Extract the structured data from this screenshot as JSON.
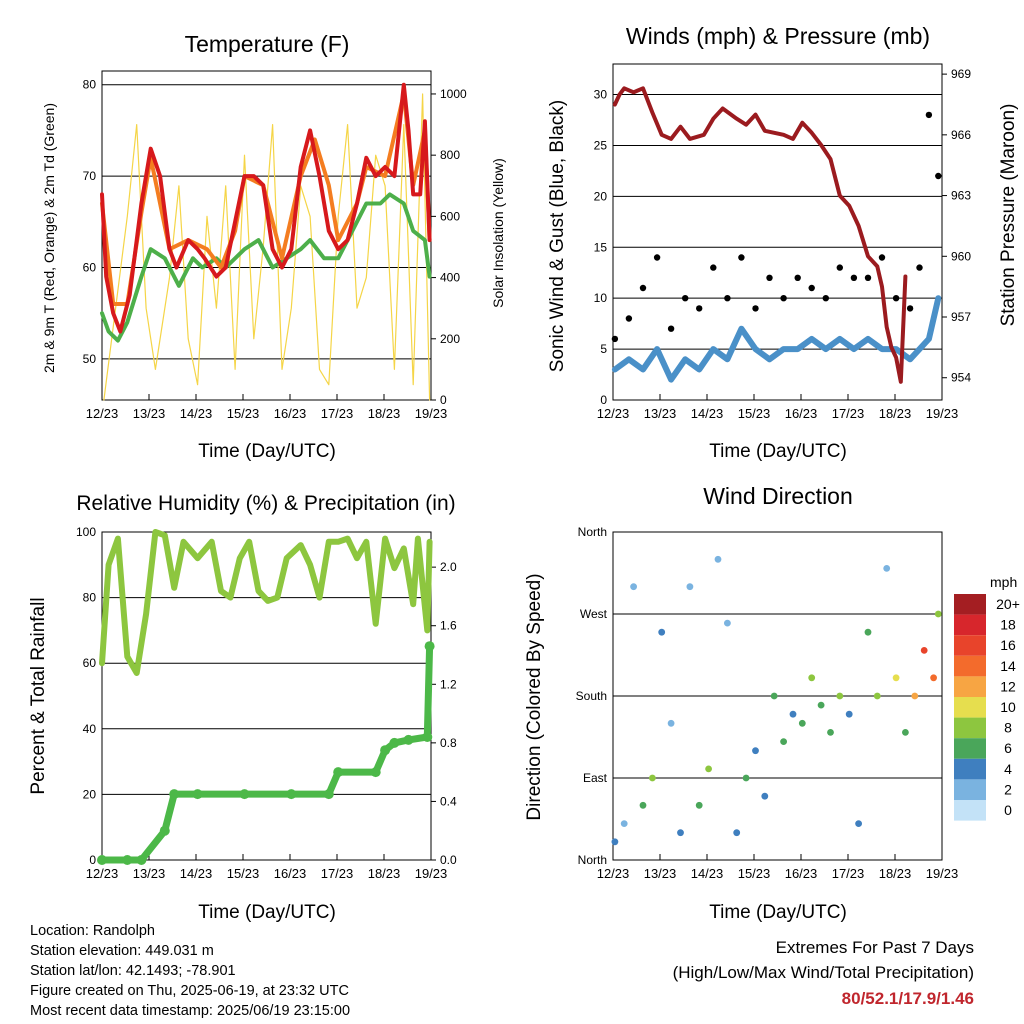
{
  "charts": {
    "temperature": {
      "title": "Temperature (F)",
      "ylabel_left": "2m & 9m T (Red, Orange) & 2m Td (Green)",
      "ylabel_right": "Solar Insolation (Yellow)",
      "xlabel": "Time (Day/UTC)"
    },
    "winds": {
      "title": "Winds (mph) & Pressure (mb)",
      "ylabel_left": "Sonic Wind & Gust (Blue, Black)",
      "ylabel_right": "Station Pressure (Maroon)",
      "xlabel": "Time (Day/UTC)"
    },
    "humidity": {
      "title": "Relative Humidity (%) & Precipitation (in)",
      "ylabel_left": "Percent & Total Rainfall",
      "xlabel": "Time (Day/UTC)"
    },
    "direction": {
      "title": "Wind Direction",
      "ylabel_left": "Direction (Colored By Speed)",
      "xlabel": "Time (Day/UTC)",
      "legend_title": "mph"
    }
  },
  "chart_data": [
    {
      "type": "line",
      "title": "Temperature (F)",
      "xlabel": "Time (Day/UTC)",
      "ylabel": "2m & 9m T (Red, Orange) & 2m Td (Green)",
      "y2label": "Solar Insolation (Yellow)",
      "x_ticks": [
        "12/23",
        "13/23",
        "14/23",
        "15/23",
        "16/23",
        "17/23",
        "18/23",
        "19/23"
      ],
      "xlim": [
        12.96,
        19.98
      ],
      "y_ticks": [
        50,
        60,
        70,
        80
      ],
      "ylim": [
        45.5,
        81.5
      ],
      "y2_ticks": [
        0,
        200,
        400,
        600,
        800,
        1000
      ],
      "y2lim": [
        0,
        1075
      ],
      "grid": true,
      "series": [
        {
          "color": "#d7191c",
          "x": [
            12.96,
            13.05,
            13.2,
            13.35,
            13.55,
            13.8,
            14.0,
            14.2,
            14.4,
            14.55,
            14.8,
            15.0,
            15.15,
            15.4,
            15.6,
            15.8,
            16.0,
            16.2,
            16.4,
            16.6,
            16.8,
            17.0,
            17.2,
            17.4,
            17.6,
            17.8,
            18.0,
            18.2,
            18.4,
            18.6,
            18.8,
            19.0,
            19.2,
            19.4,
            19.5,
            19.6,
            19.75,
            19.85,
            19.95
          ],
          "values": [
            68,
            59,
            55,
            53,
            57,
            67,
            73,
            70,
            62,
            60,
            63,
            62,
            61,
            59,
            60,
            65,
            70,
            70,
            69,
            62,
            60,
            62,
            71,
            75,
            70,
            64,
            62,
            63,
            67,
            72,
            70,
            71,
            70,
            80,
            75,
            68,
            68,
            76,
            63
          ]
        },
        {
          "color": "#f47d20",
          "x": [
            12.96,
            13.2,
            13.5,
            13.8,
            14.0,
            14.4,
            14.8,
            15.2,
            15.5,
            15.8,
            16.0,
            16.4,
            16.8,
            17.2,
            17.5,
            17.8,
            18.0,
            18.4,
            18.6,
            19.0,
            19.4,
            19.6,
            19.85,
            19.95
          ],
          "values": [
            67,
            56,
            56,
            66,
            72,
            62,
            63,
            62,
            60,
            64,
            70,
            69,
            61,
            70,
            74,
            69,
            63,
            67,
            71,
            70,
            79,
            69,
            75,
            63
          ]
        },
        {
          "color": "#4daf4a",
          "x": [
            12.96,
            13.1,
            13.3,
            13.5,
            13.8,
            14.0,
            14.3,
            14.6,
            14.9,
            15.1,
            15.4,
            15.6,
            16.0,
            16.3,
            16.6,
            16.9,
            17.2,
            17.4,
            17.7,
            18.0,
            18.3,
            18.6,
            18.9,
            19.1,
            19.4,
            19.6,
            19.85,
            19.95
          ],
          "values": [
            55,
            53,
            52,
            54,
            59,
            62,
            61,
            58,
            61,
            60,
            61,
            60,
            62,
            63,
            60,
            61,
            62,
            63,
            61,
            61,
            64,
            67,
            67,
            68,
            67,
            64,
            63,
            59
          ]
        },
        {
          "color": "#f5d547",
          "x": [
            13.0,
            13.5,
            13.7,
            13.9,
            14.1,
            14.4,
            14.6,
            14.8,
            15.0,
            15.2,
            15.4,
            15.6,
            15.8,
            16.0,
            16.2,
            16.4,
            16.6,
            16.8,
            17.0,
            17.2,
            17.4,
            17.6,
            17.8,
            18.0,
            18.2,
            18.4,
            18.6,
            18.8,
            19.0,
            19.2,
            19.4,
            19.6,
            19.8,
            19.95
          ],
          "values": [
            0,
            600,
            900,
            300,
            100,
            400,
            700,
            200,
            50,
            600,
            300,
            700,
            100,
            800,
            200,
            500,
            900,
            100,
            300,
            700,
            600,
            100,
            50,
            600,
            900,
            300,
            400,
            800,
            700,
            100,
            900,
            50,
            1000,
            0
          ]
        }
      ]
    },
    {
      "type": "scatter",
      "title": "Winds (mph) & Pressure (mb)",
      "xlabel": "Time (Day/UTC)",
      "ylabel": "Sonic Wind & Gust (Blue, Black)",
      "y2label": "Station Pressure (Maroon)",
      "x_ticks": [
        "12/23",
        "13/23",
        "14/23",
        "15/23",
        "16/23",
        "17/23",
        "18/23",
        "19/23"
      ],
      "xlim": [
        12.96,
        19.98
      ],
      "y_ticks": [
        0,
        5,
        10,
        15,
        20,
        25,
        30
      ],
      "ylim": [
        0,
        33
      ],
      "y2_ticks": [
        954,
        957,
        960,
        963,
        966,
        969
      ],
      "y2lim": [
        952.9,
        969.5
      ],
      "grid": true,
      "series": [
        {
          "name": "Pressure",
          "color": "#9b1b1f",
          "x": [
            13.0,
            13.1,
            13.2,
            13.4,
            13.6,
            13.8,
            14.0,
            14.2,
            14.4,
            14.6,
            14.9,
            15.1,
            15.3,
            15.6,
            15.8,
            16.0,
            16.2,
            16.4,
            16.6,
            16.8,
            17.0,
            17.2,
            17.4,
            17.6,
            17.8,
            18.0,
            18.2,
            18.4,
            18.6,
            18.7,
            18.8,
            18.9,
            19.0,
            19.1,
            19.2
          ],
          "values": [
            967.5,
            968.0,
            968.3,
            968.1,
            968.3,
            967.1,
            966.0,
            965.8,
            966.4,
            965.8,
            966.0,
            966.8,
            967.3,
            966.8,
            966.5,
            967.0,
            966.2,
            966.1,
            966.0,
            965.8,
            966.6,
            966.1,
            965.5,
            964.8,
            963.0,
            962.5,
            961.5,
            960.0,
            959.5,
            958.5,
            956.5,
            955.5,
            955.0,
            953.8,
            959.0
          ]
        },
        {
          "name": "Wind",
          "color": "#4a90c8",
          "x": [
            13.0,
            13.3,
            13.6,
            13.9,
            14.2,
            14.5,
            14.8,
            15.1,
            15.4,
            15.7,
            16.0,
            16.3,
            16.6,
            16.9,
            17.2,
            17.5,
            17.8,
            18.1,
            18.4,
            18.7,
            19.0,
            19.3,
            19.5,
            19.7,
            19.9
          ],
          "values": [
            3,
            4,
            3,
            5,
            2,
            4,
            3,
            5,
            4,
            7,
            5,
            4,
            5,
            5,
            6,
            5,
            6,
            5,
            6,
            5,
            5,
            4,
            5,
            6,
            10
          ]
        },
        {
          "name": "Gust",
          "color": "#000000",
          "x": [
            13.0,
            13.3,
            13.6,
            13.9,
            14.2,
            14.5,
            14.8,
            15.1,
            15.4,
            15.7,
            16.0,
            16.3,
            16.6,
            16.9,
            17.2,
            17.5,
            17.8,
            18.1,
            18.4,
            18.7,
            19.0,
            19.3,
            19.5,
            19.7,
            19.9
          ],
          "values": [
            6,
            8,
            11,
            14,
            7,
            10,
            9,
            13,
            10,
            14,
            9,
            12,
            10,
            12,
            11,
            10,
            13,
            12,
            12,
            14,
            10,
            9,
            13,
            28,
            22
          ]
        }
      ]
    },
    {
      "type": "line",
      "title": "Relative Humidity (%) & Precipitation (in)",
      "xlabel": "Time (Day/UTC)",
      "ylabel": "Percent & Total Rainfall",
      "x_ticks": [
        "12/23",
        "13/23",
        "14/23",
        "15/23",
        "16/23",
        "17/23",
        "18/23",
        "19/23"
      ],
      "xlim": [
        12.96,
        19.98
      ],
      "y_ticks": [
        0,
        20,
        40,
        60,
        80,
        100
      ],
      "ylim": [
        0,
        100
      ],
      "y2_ticks": [
        0.0,
        0.4,
        0.8,
        1.2,
        1.6,
        2.0
      ],
      "y2lim": [
        0,
        2.24
      ],
      "grid": true,
      "series": [
        {
          "name": "RH",
          "color": "#8dc63f",
          "x": [
            12.96,
            13.1,
            13.3,
            13.5,
            13.7,
            13.9,
            14.1,
            14.3,
            14.5,
            14.7,
            15.0,
            15.3,
            15.5,
            15.7,
            15.9,
            16.1,
            16.3,
            16.5,
            16.7,
            16.9,
            17.2,
            17.4,
            17.6,
            17.8,
            18.0,
            18.2,
            18.4,
            18.6,
            18.8,
            19.0,
            19.2,
            19.4,
            19.6,
            19.7,
            19.9,
            19.95
          ],
          "values": [
            60,
            90,
            98,
            62,
            57,
            75,
            100,
            99,
            83,
            97,
            92,
            97,
            82,
            80,
            92,
            97,
            82,
            79,
            80,
            92,
            96,
            90,
            80,
            97,
            97,
            98,
            92,
            97,
            72,
            98,
            89,
            95,
            78,
            98,
            70,
            97
          ]
        },
        {
          "name": "Precip",
          "color": "#4cb848",
          "x": [
            12.96,
            13.5,
            13.8,
            14.3,
            14.5,
            15.0,
            16.0,
            17.0,
            17.8,
            18.0,
            18.8,
            19.0,
            19.2,
            19.5,
            19.9,
            19.95
          ],
          "values": [
            0,
            0,
            0,
            0.2,
            0.45,
            0.45,
            0.45,
            0.45,
            0.45,
            0.6,
            0.6,
            0.75,
            0.8,
            0.82,
            0.84,
            1.46
          ]
        }
      ]
    },
    {
      "type": "scatter",
      "title": "Wind Direction",
      "xlabel": "Time (Day/UTC)",
      "ylabel": "Direction (Colored By Speed)",
      "x_ticks": [
        "12/23",
        "13/23",
        "14/23",
        "15/23",
        "16/23",
        "17/23",
        "18/23",
        "19/23"
      ],
      "xlim": [
        12.96,
        19.98
      ],
      "y_ticks": [
        "North",
        "East",
        "South",
        "West",
        "North"
      ],
      "ylim": [
        0,
        360
      ],
      "legend": {
        "title": "mph",
        "labels": [
          "20+",
          "18",
          "16",
          "14",
          "12",
          "10",
          "8",
          "6",
          "4",
          "2",
          "0"
        ],
        "colors": [
          "#a41e22",
          "#d7262c",
          "#e8442b",
          "#f36b2c",
          "#f7a543",
          "#e6de4e",
          "#8dc63f",
          "#4aa65a",
          "#3f7fbf",
          "#7ab3e0",
          "#c3e2f7"
        ]
      },
      "series": [
        {
          "name": "Direction",
          "x": [
            13.0,
            13.2,
            13.4,
            13.6,
            13.8,
            14.0,
            14.2,
            14.4,
            14.6,
            14.8,
            15.0,
            15.2,
            15.4,
            15.6,
            15.8,
            16.0,
            16.2,
            16.4,
            16.6,
            16.8,
            17.0,
            17.2,
            17.4,
            17.6,
            17.8,
            18.0,
            18.2,
            18.4,
            18.6,
            18.8,
            19.0,
            19.2,
            19.4,
            19.6,
            19.8,
            19.9
          ],
          "values": [
            20,
            40,
            300,
            60,
            90,
            250,
            150,
            30,
            300,
            60,
            100,
            330,
            260,
            30,
            90,
            120,
            70,
            180,
            130,
            160,
            150,
            200,
            170,
            140,
            180,
            160,
            40,
            250,
            180,
            320,
            200,
            140,
            180,
            230,
            200,
            270
          ],
          "speeds": [
            3,
            2,
            1,
            5,
            7,
            3,
            2,
            4,
            1,
            6,
            7,
            2,
            1,
            3,
            5,
            4,
            3,
            6,
            5,
            4,
            6,
            7,
            5,
            6,
            8,
            4,
            3,
            6,
            7,
            2,
            9,
            5,
            12,
            16,
            14,
            8
          ]
        }
      ]
    }
  ],
  "footer": {
    "location": "Location: Randolph",
    "elevation": "Station elevation: 449.031 m",
    "latlon": "Station lat/lon: 42.1493; -78.901",
    "created": "Figure created on Thu, 2025-06-19, at 23:32 UTC",
    "recent": "Most recent data timestamp: 2025/06/19 23:15:00"
  },
  "extremes": {
    "line1": "Extremes For Past 7 Days",
    "line2": "(High/Low/Max Wind/Total Precipitation)",
    "values": "80/52.1/17.9/1.46"
  }
}
